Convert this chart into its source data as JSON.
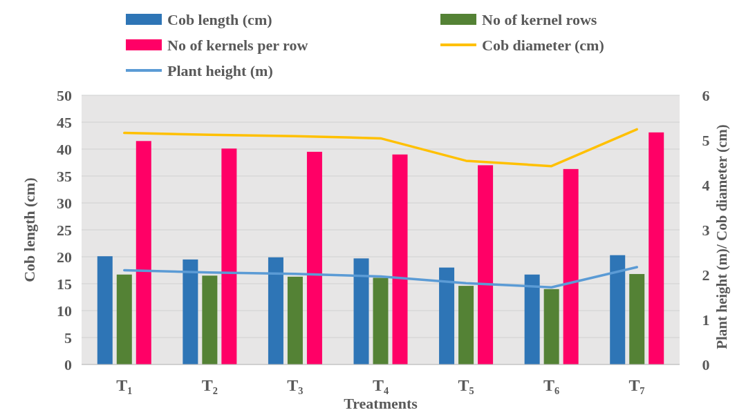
{
  "chart_data": {
    "type": "bar",
    "xlabel": "Treatments",
    "ylabel": "Cob length (cm)",
    "y2label": "Plant height (m)/ Cob diameter (cm)",
    "categories": [
      "T₁",
      "T₂",
      "T₃",
      "T₄",
      "T₅",
      "T₆",
      "T₇"
    ],
    "series": [
      {
        "name": "Cob length (cm)",
        "color": "#2e75b6",
        "values": [
          20.1,
          19.5,
          19.9,
          19.7,
          18.0,
          16.7,
          20.3
        ]
      },
      {
        "name": "No of kernel rows",
        "color": "#548235",
        "values": [
          16.7,
          16.5,
          16.3,
          16.1,
          14.6,
          14.0,
          16.8
        ]
      },
      {
        "name": "No of kernels per row",
        "color": "#ff0066",
        "values": [
          41.5,
          40.1,
          39.5,
          39.0,
          37.0,
          36.3,
          43.1
        ]
      },
      {
        "name": "Cob diameter (cm)",
        "type": "line",
        "axis": "y2",
        "color": "#ffc000",
        "values": [
          5.16,
          5.12,
          5.09,
          5.04,
          4.54,
          4.42,
          5.24
        ]
      },
      {
        "name": "Plant height (m)",
        "type": "line",
        "axis": "y2",
        "color": "#5b9bd5",
        "values": [
          2.1,
          2.05,
          2.02,
          1.96,
          1.81,
          1.72,
          2.17
        ]
      }
    ],
    "ylim": [
      0,
      50
    ],
    "yticks": [
      0,
      5,
      10,
      15,
      20,
      25,
      30,
      35,
      40,
      45,
      50
    ],
    "y2lim": [
      0,
      6
    ],
    "y2ticks": [
      0,
      1,
      2,
      3,
      4,
      5,
      6
    ],
    "grid": "y",
    "legend": "top",
    "marker": "none",
    "line_style": "solid"
  }
}
